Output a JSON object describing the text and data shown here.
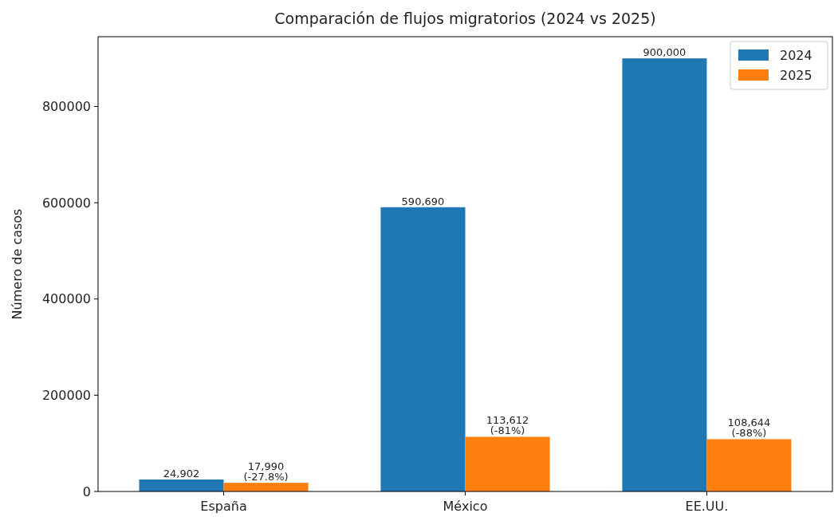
{
  "chart_data": {
    "type": "bar",
    "title": "Comparación de flujos migratorios (2024 vs 2025)",
    "ylabel": "Número de casos",
    "categories": [
      "España",
      "México",
      "EE.UU."
    ],
    "series": [
      {
        "name": "2024",
        "color": "#1f77b4",
        "values": [
          24902,
          590690,
          900000
        ],
        "value_labels": [
          "24,902",
          "590,690",
          "900,000"
        ]
      },
      {
        "name": "2025",
        "color": "#ff7f0e",
        "values": [
          17990,
          113612,
          108644
        ],
        "value_labels": [
          "17,990\n(-27.8%)",
          "113,612\n(-81%)",
          "108,644\n(-88%)"
        ]
      }
    ],
    "ylim": [
      0,
      945000
    ],
    "yticks": [
      0,
      200000,
      400000,
      600000,
      800000
    ],
    "grid": false,
    "legend": "top right"
  }
}
